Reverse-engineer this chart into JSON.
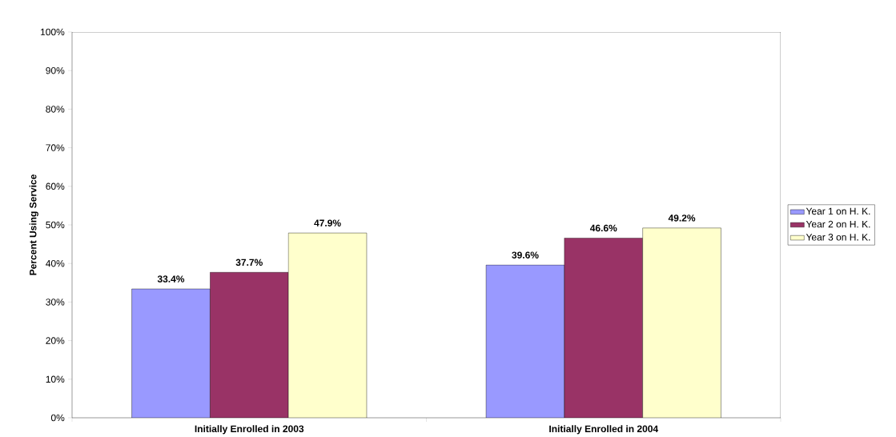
{
  "chart_data": {
    "type": "bar",
    "ylabel": "Percent Using Service",
    "categories": [
      "Initially Enrolled in 2003",
      "Initially Enrolled in 2004"
    ],
    "series": [
      {
        "name": "Year 1 on H. K.",
        "color": "#9999ff",
        "values": [
          33.4,
          39.6
        ],
        "value_labels": [
          "33.4%",
          "39.6%"
        ]
      },
      {
        "name": "Year 2 on H. K.",
        "color": "#993366",
        "values": [
          37.7,
          46.6
        ],
        "value_labels": [
          "37.7%",
          "46.6%"
        ]
      },
      {
        "name": "Year 3 on H. K.",
        "color": "#ffffcc",
        "values": [
          47.9,
          49.2
        ],
        "value_labels": [
          "47.9%",
          "49.2%"
        ]
      }
    ],
    "ylim": [
      0,
      100
    ],
    "yticks": [
      {
        "value": 0,
        "label": "0%"
      },
      {
        "value": 10,
        "label": "10%"
      },
      {
        "value": 20,
        "label": "20%"
      },
      {
        "value": 30,
        "label": "30%"
      },
      {
        "value": 40,
        "label": "40%"
      },
      {
        "value": 50,
        "label": "50%"
      },
      {
        "value": 60,
        "label": "60%"
      },
      {
        "value": 70,
        "label": "70%"
      },
      {
        "value": 80,
        "label": "80%"
      },
      {
        "value": 90,
        "label": "90%"
      },
      {
        "value": 100,
        "label": "100%"
      }
    ],
    "legend": "right"
  }
}
